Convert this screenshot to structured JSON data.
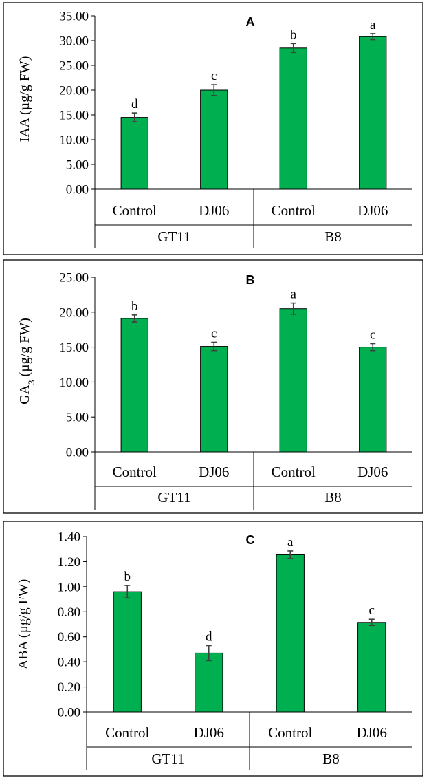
{
  "colors": {
    "bar": "#00b050",
    "frame": "#000000",
    "error": "#404040"
  },
  "chart_data": [
    {
      "type": "bar",
      "panel_label": "A",
      "ylabel_main": "IAA",
      "ylabel_unit": " (µg/g FW)",
      "ylim": [
        0,
        35
      ],
      "ytick_step": 5,
      "ytick_labels": [
        "0.00",
        "5.00",
        "10.00",
        "15.00",
        "20.00",
        "25.00",
        "30.00",
        "35.00"
      ],
      "groups": [
        "GT11",
        "B8"
      ],
      "categories": [
        "Control",
        "DJ06",
        "Control",
        "DJ06"
      ],
      "values": [
        14.5,
        20.0,
        28.5,
        30.8
      ],
      "errors": [
        0.9,
        1.1,
        0.9,
        0.6
      ],
      "significance": [
        "d",
        "c",
        "b",
        "a"
      ]
    },
    {
      "type": "bar",
      "panel_label": "B",
      "ylabel_main": "GA",
      "ylabel_sub": "3",
      "ylabel_unit": " (µg/g FW)",
      "ylim": [
        0,
        25
      ],
      "ytick_step": 5,
      "ytick_labels": [
        "0.00",
        "5.00",
        "10.00",
        "15.00",
        "20.00",
        "25.00"
      ],
      "groups": [
        "GT11",
        "B8"
      ],
      "categories": [
        "Control",
        "DJ06",
        "Control",
        "DJ06"
      ],
      "values": [
        19.1,
        15.1,
        20.5,
        15.0
      ],
      "errors": [
        0.5,
        0.6,
        0.8,
        0.5
      ],
      "significance": [
        "b",
        "c",
        "a",
        "c"
      ]
    },
    {
      "type": "bar",
      "panel_label": "C",
      "ylabel_main": "ABA",
      "ylabel_unit": " (µg/g FW)",
      "ylim": [
        0,
        1.4
      ],
      "ytick_step": 0.2,
      "ytick_labels": [
        "0.00",
        "0.20",
        "0.40",
        "0.60",
        "0.80",
        "1.00",
        "1.20",
        "1.40"
      ],
      "groups": [
        "GT11",
        "B8"
      ],
      "categories": [
        "Control",
        "DJ06",
        "Control",
        "DJ06"
      ],
      "values": [
        0.96,
        0.47,
        1.255,
        0.715
      ],
      "errors": [
        0.05,
        0.06,
        0.03,
        0.025
      ],
      "significance": [
        "b",
        "d",
        "a",
        "c"
      ]
    }
  ]
}
